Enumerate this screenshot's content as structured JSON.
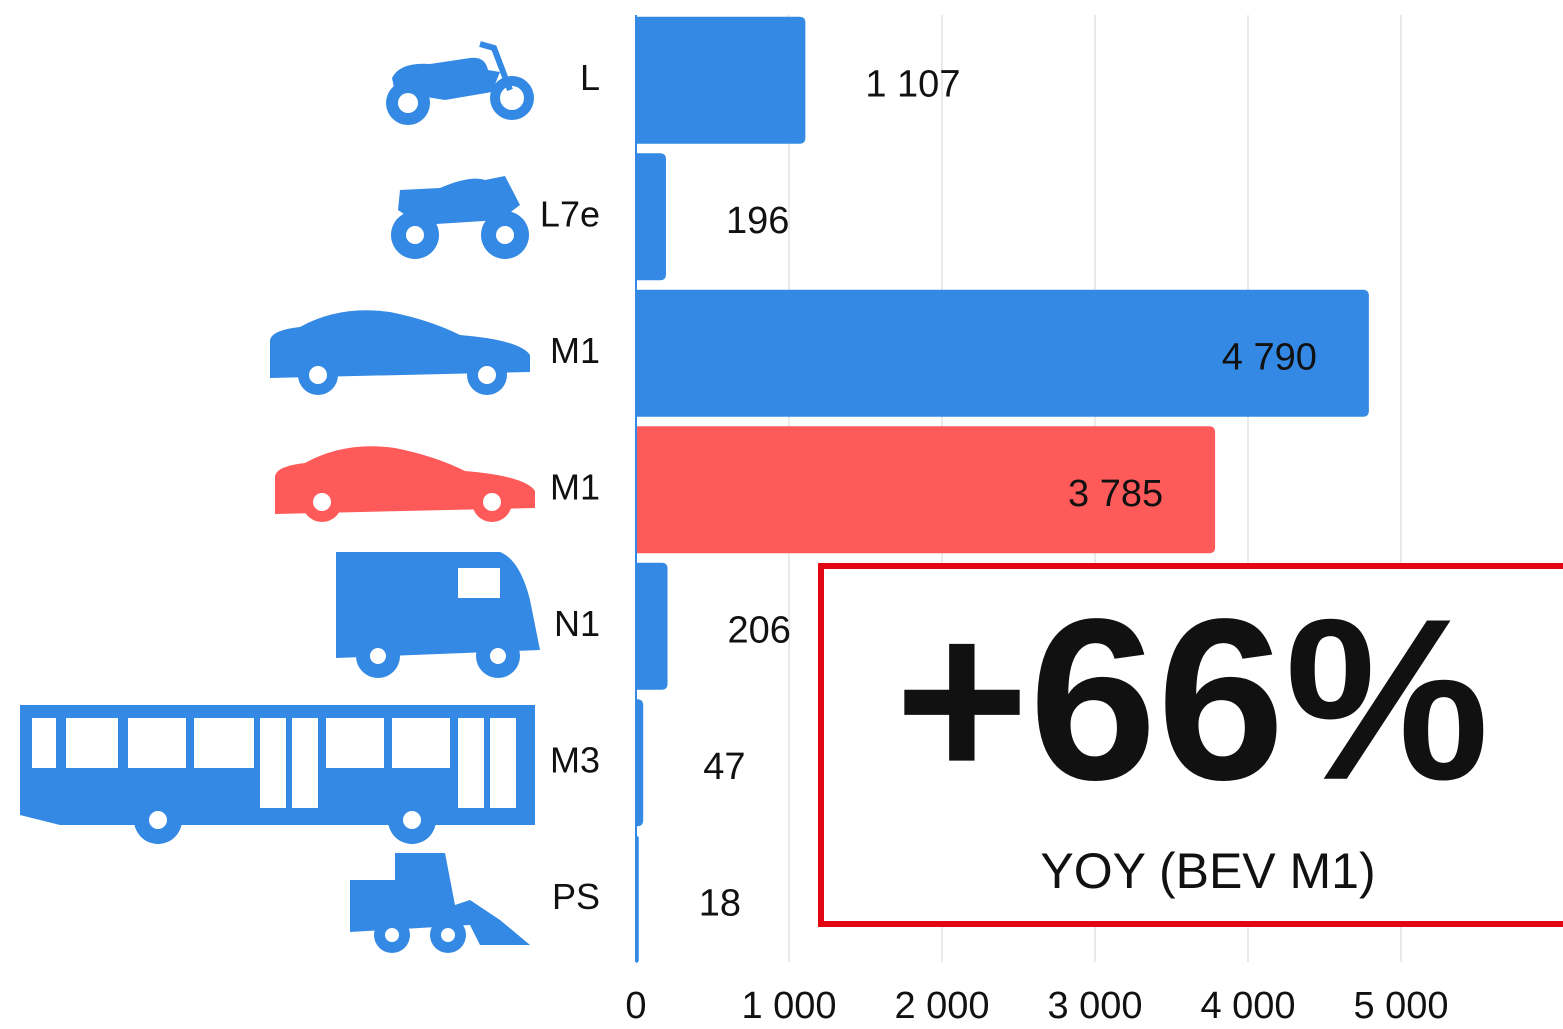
{
  "chart_data": {
    "type": "bar",
    "orientation": "horizontal",
    "categories": [
      "L",
      "L7e",
      "M1",
      "M1",
      "N1",
      "M3",
      "PS"
    ],
    "values": [
      1107,
      196,
      4790,
      3785,
      206,
      47,
      18
    ],
    "value_labels": [
      "1 107",
      "196",
      "4 790",
      "3 785",
      "206",
      "47",
      "18"
    ],
    "colors": [
      "#3389e3",
      "#3389e3",
      "#3389e3",
      "#ff5a5a",
      "#3389e3",
      "#3389e3",
      "#3389e3"
    ],
    "xlim": [
      0,
      6000
    ],
    "xticks": [
      0,
      {
        "value": 1000,
        "label": "1 000"
      },
      {
        "value": 2000,
        "label": "2 000"
      },
      {
        "value": 3000,
        "label": "3 000"
      },
      {
        "value": 4000,
        "label": "4 000"
      },
      {
        "value": 5000,
        "label": "5 000"
      }
    ],
    "grid": true,
    "annotation": {
      "text": "+66%",
      "subtext": "YOY (BEV M1)",
      "color": "#e30613"
    }
  }
}
